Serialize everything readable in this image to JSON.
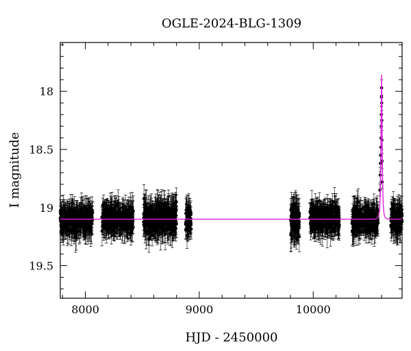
{
  "chart_data": {
    "type": "scatter",
    "title": "OGLE-2024-BLG-1309",
    "xlabel": "HJD - 2450000",
    "ylabel": "I magnitude",
    "xlim": [
      7780,
      10780
    ],
    "ylim": [
      19.78,
      17.58
    ],
    "y_inverted": true,
    "grid": false,
    "xticks": [
      8000,
      9000,
      10000
    ],
    "xtick_labels": [
      "8000",
      "9000",
      "10000"
    ],
    "yticks": [
      18,
      18.5,
      19,
      19.5
    ],
    "ytick_labels": [
      "18",
      "18.5",
      "19",
      "19.5"
    ],
    "series": [
      {
        "name": "observations",
        "kind": "points_with_errorbars",
        "color": "#000000",
        "seasons": [
          {
            "x_start": 7780,
            "x_end": 8065,
            "mag_center": 19.1,
            "scatter": 0.1,
            "err": 0.09
          },
          {
            "x_start": 8145,
            "x_end": 8420,
            "mag_center": 19.1,
            "scatter": 0.1,
            "err": 0.09
          },
          {
            "x_start": 8510,
            "x_end": 8800,
            "mag_center": 19.1,
            "scatter": 0.11,
            "err": 0.1
          },
          {
            "x_start": 8880,
            "x_end": 8930,
            "mag_center": 19.1,
            "scatter": 0.1,
            "err": 0.09
          },
          {
            "x_start": 9800,
            "x_end": 9880,
            "mag_center": 19.1,
            "scatter": 0.12,
            "err": 0.1
          },
          {
            "x_start": 9970,
            "x_end": 10230,
            "mag_center": 19.1,
            "scatter": 0.1,
            "err": 0.09
          },
          {
            "x_start": 10340,
            "x_end": 10570,
            "mag_center": 19.1,
            "scatter": 0.1,
            "err": 0.09
          },
          {
            "x_start": 10680,
            "x_end": 10780,
            "mag_center": 19.1,
            "scatter": 0.1,
            "err": 0.09
          }
        ],
        "event_points": [
          {
            "x": 10585,
            "y": 18.85
          },
          {
            "x": 10588,
            "y": 18.72
          },
          {
            "x": 10590,
            "y": 18.62
          },
          {
            "x": 10592,
            "y": 18.55
          },
          {
            "x": 10594,
            "y": 18.48
          },
          {
            "x": 10596,
            "y": 18.4
          },
          {
            "x": 10597,
            "y": 18.3
          },
          {
            "x": 10598,
            "y": 18.2
          },
          {
            "x": 10599,
            "y": 18.05
          },
          {
            "x": 10600,
            "y": 17.97
          },
          {
            "x": 10601,
            "y": 18.1
          },
          {
            "x": 10602,
            "y": 18.25
          },
          {
            "x": 10603,
            "y": 18.42
          },
          {
            "x": 10604,
            "y": 18.6
          },
          {
            "x": 10606,
            "y": 18.78
          }
        ]
      },
      {
        "name": "model",
        "kind": "line",
        "color": "#e020e0",
        "baseline": 19.1,
        "peak_x": 10600,
        "peak_mag": 17.85,
        "tE": 10
      }
    ]
  }
}
